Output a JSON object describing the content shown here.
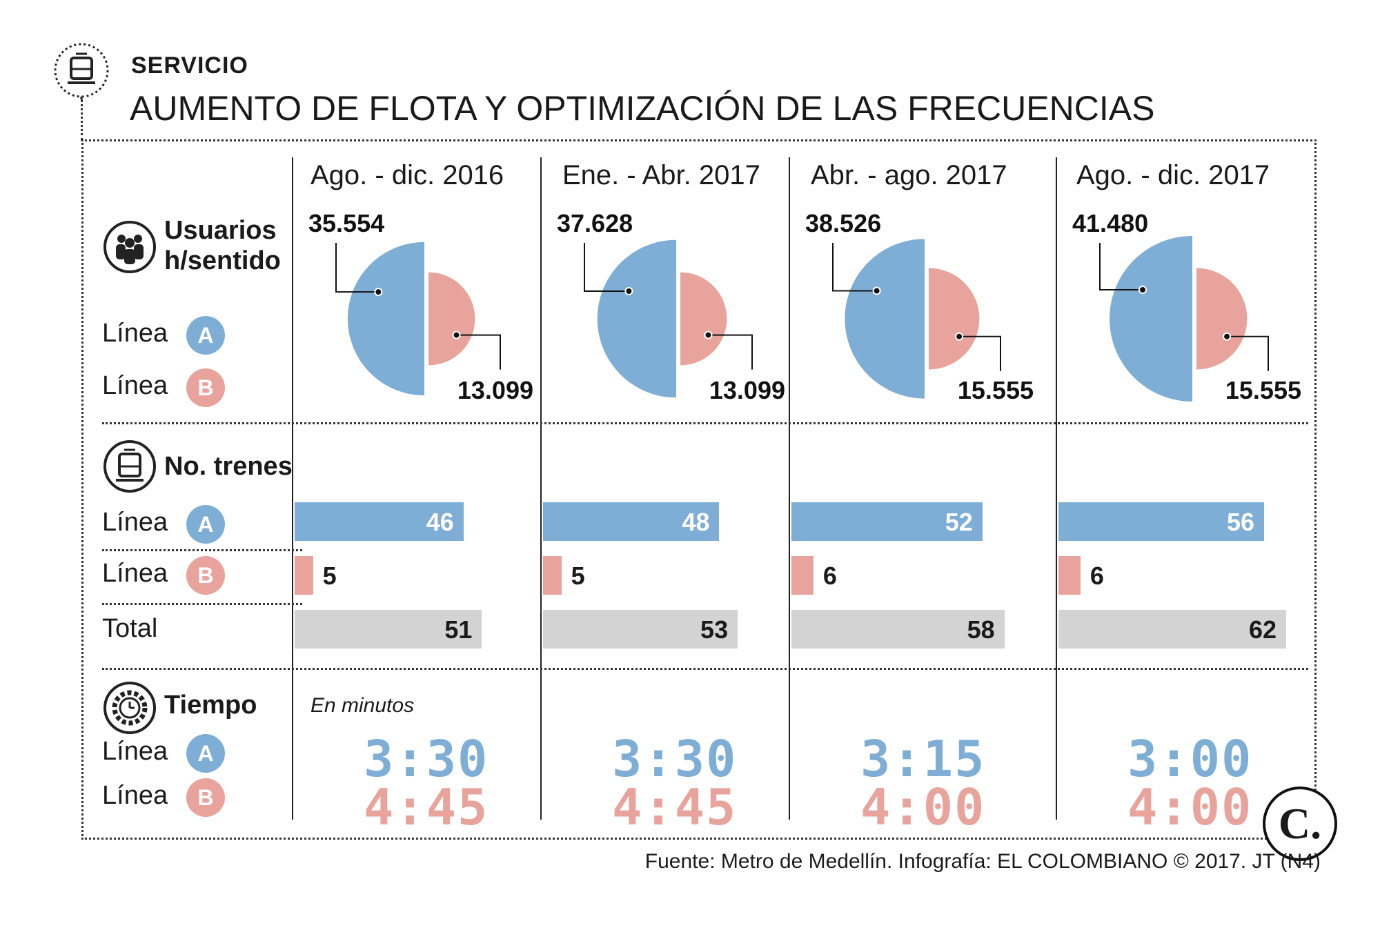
{
  "header": {
    "kicker": "SERVICIO",
    "title": "AUMENTO DE FLOTA Y OPTIMIZACIÓN DE LAS FRECUENCIAS",
    "icon": "train-icon"
  },
  "labels": {
    "users_section": "Usuarios h/sentido",
    "trains_section": "No. trenes",
    "time_section": "Tiempo",
    "line": "Línea",
    "badge_a": "A",
    "badge_b": "B",
    "total": "Total",
    "minutes_note": "En minutos"
  },
  "colors": {
    "line_a": "#7eaed6",
    "line_b": "#e8a49c",
    "total": "#d3d3d4"
  },
  "source": "Fuente: Metro de Medellín. Infografía: EL COLOMBIANO © 2017. JT (N4)",
  "logo": "C.",
  "chart_data": {
    "type": "bar",
    "title": "AUMENTO DE FLOTA Y OPTIMIZACIÓN DE LAS FRECUENCIAS",
    "categories": [
      "Ago. - dic. 2016",
      "Ene. - Abr. 2017",
      "Abr. -  ago. 2017",
      "Ago. - dic. 2017"
    ],
    "users": {
      "unit": "Usuarios h/sentido",
      "series": [
        {
          "name": "Línea A",
          "labels": [
            "35.554",
            "37.628",
            "38.526",
            "41.480"
          ],
          "values": [
            35554,
            37628,
            38526,
            41480
          ]
        },
        {
          "name": "Línea B",
          "labels": [
            "13.099",
            "13.099",
            "15.555",
            "15.555"
          ],
          "values": [
            13099,
            13099,
            15555,
            15555
          ]
        }
      ]
    },
    "trains": {
      "unit": "No. trenes",
      "series": [
        {
          "name": "Línea A",
          "values": [
            46,
            48,
            52,
            56
          ]
        },
        {
          "name": "Línea B",
          "values": [
            5,
            5,
            6,
            6
          ]
        },
        {
          "name": "Total",
          "values": [
            51,
            53,
            58,
            62
          ]
        }
      ]
    },
    "time": {
      "unit": "En minutos",
      "series": [
        {
          "name": "Línea A",
          "values": [
            "3:30",
            "3:30",
            "3:15",
            "3:00"
          ]
        },
        {
          "name": "Línea B",
          "values": [
            "4:45",
            "4:45",
            "4:00",
            "4:00"
          ]
        }
      ]
    }
  }
}
